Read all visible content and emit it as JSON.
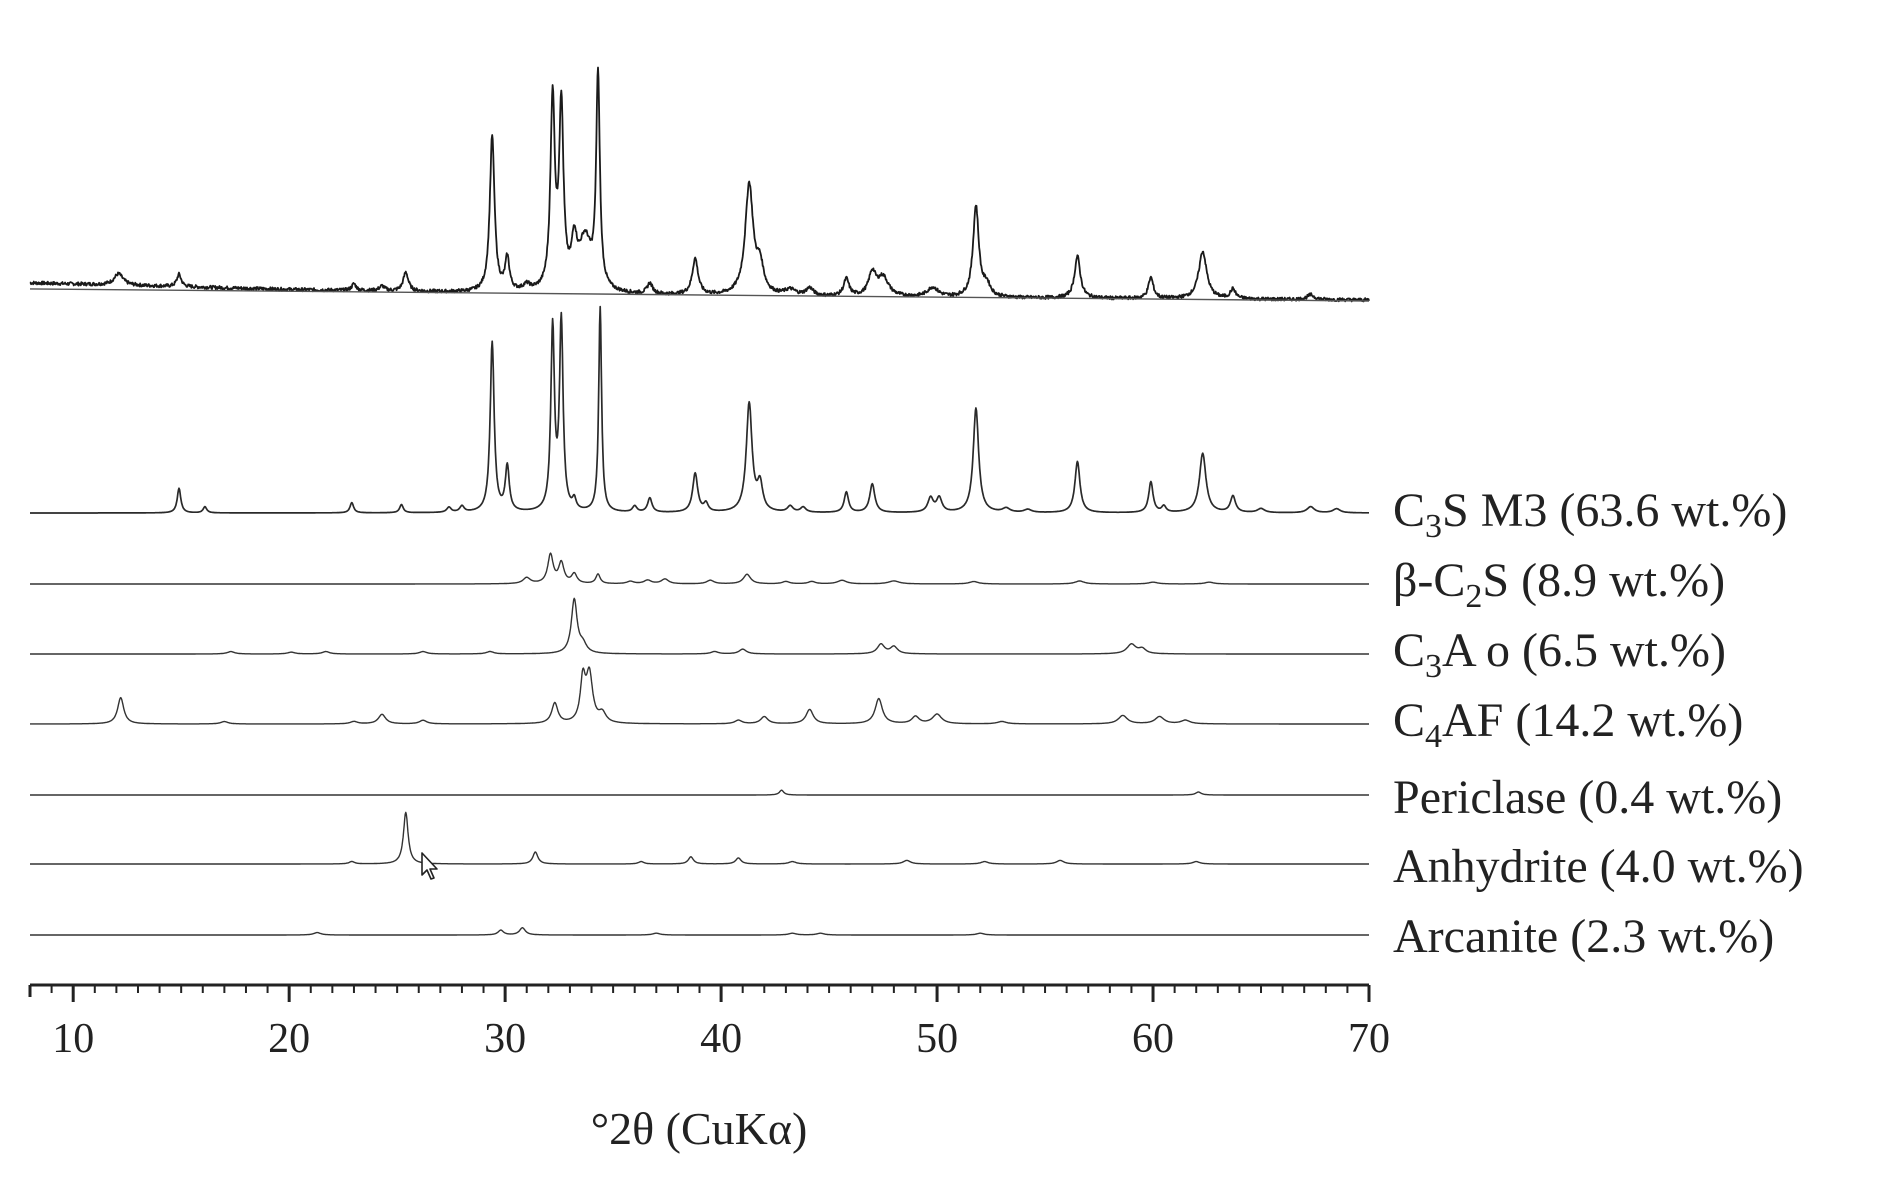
{
  "chart_data": {
    "type": "line",
    "title": "",
    "xlabel": "°2θ (CuKα)",
    "ylabel": "",
    "xlim": [
      8,
      70
    ],
    "x_ticks": [
      10,
      20,
      30,
      40,
      50,
      60,
      70
    ],
    "grid": false,
    "legend": "labels at right end of each trace",
    "series": [
      {
        "name": "",
        "role": "measured",
        "color": "#1a1a1a",
        "background": [
          [
            8,
            0.09
          ],
          [
            20,
            0.055
          ],
          [
            30,
            0.035
          ],
          [
            40,
            0.02
          ],
          [
            50,
            0.012
          ],
          [
            60,
            0.006
          ],
          [
            70,
            0.0
          ]
        ],
        "peaks": [
          [
            12.1,
            0.06,
            0.25
          ],
          [
            14.9,
            0.065,
            0.12
          ],
          [
            23.0,
            0.035,
            0.12
          ],
          [
            24.3,
            0.025,
            0.15
          ],
          [
            25.4,
            0.1,
            0.14
          ],
          [
            29.4,
            0.82,
            0.13
          ],
          [
            30.1,
            0.17,
            0.12
          ],
          [
            31.0,
            0.03,
            0.2
          ],
          [
            32.2,
            1.0,
            0.12
          ],
          [
            32.6,
            0.95,
            0.12
          ],
          [
            33.2,
            0.22,
            0.15
          ],
          [
            33.7,
            0.27,
            0.35
          ],
          [
            34.3,
            1.12,
            0.1
          ],
          [
            36.7,
            0.055,
            0.15
          ],
          [
            38.8,
            0.19,
            0.16
          ],
          [
            41.3,
            0.58,
            0.22
          ],
          [
            41.8,
            0.14,
            0.2
          ],
          [
            43.2,
            0.03,
            0.3
          ],
          [
            44.1,
            0.04,
            0.2
          ],
          [
            45.8,
            0.09,
            0.15
          ],
          [
            47.0,
            0.12,
            0.2
          ],
          [
            47.5,
            0.1,
            0.3
          ],
          [
            49.8,
            0.05,
            0.3
          ],
          [
            51.8,
            0.48,
            0.16
          ],
          [
            52.3,
            0.06,
            0.2
          ],
          [
            56.5,
            0.22,
            0.16
          ],
          [
            59.9,
            0.11,
            0.14
          ],
          [
            62.3,
            0.25,
            0.22
          ],
          [
            63.7,
            0.05,
            0.15
          ],
          [
            67.3,
            0.025,
            0.2
          ]
        ]
      },
      {
        "name": "C3S M3 (63.6 wt.%)",
        "color": "#2a2a2a",
        "peaks": [
          [
            14.9,
            0.12,
            0.1
          ],
          [
            16.1,
            0.03,
            0.1
          ],
          [
            22.9,
            0.05,
            0.1
          ],
          [
            25.2,
            0.04,
            0.1
          ],
          [
            27.4,
            0.025,
            0.12
          ],
          [
            28.0,
            0.03,
            0.12
          ],
          [
            29.4,
            0.83,
            0.11
          ],
          [
            30.1,
            0.22,
            0.11
          ],
          [
            32.2,
            0.89,
            0.1
          ],
          [
            32.6,
            0.92,
            0.1
          ],
          [
            33.2,
            0.05,
            0.1
          ],
          [
            34.4,
            1.0,
            0.08
          ],
          [
            36.0,
            0.03,
            0.12
          ],
          [
            36.7,
            0.07,
            0.12
          ],
          [
            38.8,
            0.19,
            0.14
          ],
          [
            39.3,
            0.04,
            0.12
          ],
          [
            41.3,
            0.53,
            0.16
          ],
          [
            41.8,
            0.13,
            0.15
          ],
          [
            43.2,
            0.03,
            0.15
          ],
          [
            43.8,
            0.025,
            0.15
          ],
          [
            45.8,
            0.1,
            0.12
          ],
          [
            47.0,
            0.14,
            0.14
          ],
          [
            49.7,
            0.07,
            0.15
          ],
          [
            50.1,
            0.07,
            0.15
          ],
          [
            51.8,
            0.51,
            0.15
          ],
          [
            53.2,
            0.02,
            0.2
          ],
          [
            54.2,
            0.015,
            0.2
          ],
          [
            56.5,
            0.25,
            0.14
          ],
          [
            59.9,
            0.15,
            0.12
          ],
          [
            60.5,
            0.03,
            0.12
          ],
          [
            62.3,
            0.29,
            0.18
          ],
          [
            63.7,
            0.08,
            0.14
          ],
          [
            65.0,
            0.02,
            0.2
          ],
          [
            67.3,
            0.03,
            0.2
          ],
          [
            68.5,
            0.02,
            0.2
          ]
        ]
      },
      {
        "name": "β-C2S (8.9 wt.%)",
        "color": "#333333",
        "peaks": [
          [
            31.0,
            0.05,
            0.2
          ],
          [
            32.1,
            0.24,
            0.15
          ],
          [
            32.6,
            0.17,
            0.15
          ],
          [
            33.2,
            0.08,
            0.15
          ],
          [
            34.3,
            0.08,
            0.12
          ],
          [
            35.8,
            0.02,
            0.2
          ],
          [
            36.6,
            0.03,
            0.2
          ],
          [
            37.4,
            0.04,
            0.2
          ],
          [
            39.5,
            0.03,
            0.2
          ],
          [
            41.2,
            0.08,
            0.2
          ],
          [
            43.0,
            0.02,
            0.2
          ],
          [
            44.2,
            0.02,
            0.2
          ],
          [
            45.6,
            0.03,
            0.25
          ],
          [
            48.0,
            0.025,
            0.3
          ],
          [
            51.7,
            0.02,
            0.25
          ],
          [
            56.6,
            0.025,
            0.25
          ],
          [
            60.0,
            0.015,
            0.25
          ],
          [
            62.6,
            0.015,
            0.25
          ]
        ]
      },
      {
        "name": "C3A o (6.5 wt.%)",
        "color": "#333333",
        "peaks": [
          [
            17.3,
            0.02,
            0.2
          ],
          [
            20.1,
            0.015,
            0.2
          ],
          [
            21.7,
            0.02,
            0.2
          ],
          [
            26.2,
            0.02,
            0.2
          ],
          [
            29.3,
            0.02,
            0.2
          ],
          [
            33.2,
            0.45,
            0.16
          ],
          [
            33.6,
            0.07,
            0.2
          ],
          [
            39.7,
            0.02,
            0.2
          ],
          [
            41.0,
            0.04,
            0.2
          ],
          [
            47.4,
            0.08,
            0.2
          ],
          [
            48.0,
            0.06,
            0.2
          ],
          [
            59.0,
            0.08,
            0.25
          ],
          [
            59.5,
            0.04,
            0.2
          ]
        ]
      },
      {
        "name": "C4AF (14.2 wt.%)",
        "color": "#333333",
        "peaks": [
          [
            12.2,
            0.22,
            0.17
          ],
          [
            17.0,
            0.02,
            0.2
          ],
          [
            23.0,
            0.02,
            0.2
          ],
          [
            24.3,
            0.08,
            0.2
          ],
          [
            26.2,
            0.03,
            0.2
          ],
          [
            32.3,
            0.17,
            0.17
          ],
          [
            33.6,
            0.35,
            0.14
          ],
          [
            33.9,
            0.4,
            0.18
          ],
          [
            34.5,
            0.08,
            0.2
          ],
          [
            40.8,
            0.03,
            0.2
          ],
          [
            42.0,
            0.06,
            0.2
          ],
          [
            44.1,
            0.12,
            0.2
          ],
          [
            47.3,
            0.21,
            0.2
          ],
          [
            49.0,
            0.06,
            0.2
          ],
          [
            50.0,
            0.08,
            0.25
          ],
          [
            53.0,
            0.02,
            0.25
          ],
          [
            58.6,
            0.07,
            0.25
          ],
          [
            60.3,
            0.06,
            0.25
          ],
          [
            61.5,
            0.03,
            0.25
          ]
        ]
      },
      {
        "name": "Periclase (0.4 wt.%)",
        "color": "#333333",
        "peaks": [
          [
            42.8,
            0.04,
            0.12
          ],
          [
            62.1,
            0.025,
            0.15
          ]
        ]
      },
      {
        "name": "Anhydrite (4.0 wt.%)",
        "color": "#333333",
        "peaks": [
          [
            22.9,
            0.02,
            0.15
          ],
          [
            25.4,
            0.43,
            0.13
          ],
          [
            31.4,
            0.1,
            0.14
          ],
          [
            36.3,
            0.02,
            0.15
          ],
          [
            38.6,
            0.06,
            0.14
          ],
          [
            40.8,
            0.05,
            0.15
          ],
          [
            43.3,
            0.02,
            0.2
          ],
          [
            48.6,
            0.03,
            0.2
          ],
          [
            52.2,
            0.02,
            0.2
          ],
          [
            55.7,
            0.03,
            0.2
          ],
          [
            62.0,
            0.02,
            0.2
          ]
        ]
      },
      {
        "name": "Arcanite (2.3 wt.%)",
        "color": "#333333",
        "peaks": [
          [
            21.3,
            0.02,
            0.2
          ],
          [
            29.8,
            0.04,
            0.15
          ],
          [
            30.8,
            0.06,
            0.16
          ],
          [
            37.0,
            0.015,
            0.2
          ],
          [
            43.3,
            0.015,
            0.2
          ],
          [
            44.6,
            0.015,
            0.2
          ],
          [
            52.0,
            0.015,
            0.2
          ]
        ]
      }
    ]
  },
  "labels": {
    "c3s": {
      "pre": "C",
      "sub": "3",
      "post": "S M3 (63.6 wt.%)"
    },
    "c2s": {
      "pre": "β-C",
      "sub": "2",
      "post": "S (8.9 wt.%)"
    },
    "c3a": {
      "pre": "C",
      "sub": "3",
      "post": "A o (6.5 wt.%)"
    },
    "c4af": {
      "pre": "C",
      "sub": "4",
      "post": "AF (14.2 wt.%)"
    },
    "periclase": "Periclase (0.4 wt.%)",
    "anhydrite": "Anhydrite (4.0 wt.%)",
    "arcanite": "Arcanite (2.3 wt.%)"
  }
}
